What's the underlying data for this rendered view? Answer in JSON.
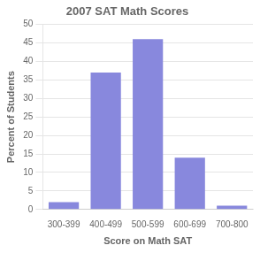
{
  "chart_data": {
    "type": "bar",
    "title": "2007 SAT Math Scores",
    "xlabel": "Score on Math SAT",
    "ylabel": "Percent of Students",
    "categories": [
      "300-399",
      "400-499",
      "500-599",
      "600-699",
      "700-800"
    ],
    "values": [
      2,
      37,
      46,
      14,
      1
    ],
    "color": "#8888dd",
    "ylim": [
      0,
      50
    ],
    "yticks": [
      0,
      5,
      10,
      15,
      20,
      25,
      30,
      35,
      40,
      45,
      50
    ],
    "grid": true
  }
}
